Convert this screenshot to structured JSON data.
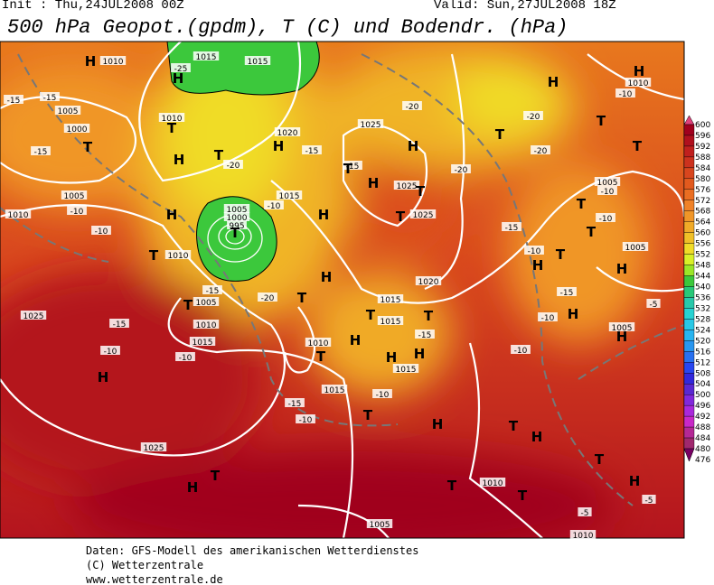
{
  "header": {
    "init": "Init : Thu,24JUL2008 00Z",
    "valid": "Valid: Sun,27JUL2008 18Z",
    "title": "500 hPa Geopot.(gpdm), T (C) und Bodendr. (hPa)"
  },
  "map": {
    "labels": [
      "H",
      "H",
      "1010",
      "1015",
      "1015",
      "-25",
      "-15",
      "-15",
      "1005",
      "1000",
      "T",
      "-15",
      "T",
      "H",
      "1010",
      "T",
      "-20",
      "1020",
      "H",
      "-15",
      "1025",
      "H",
      "-20",
      "-15",
      "T",
      "H",
      "1025",
      "T",
      "1025",
      "T",
      "-20",
      "-20",
      "-20",
      "T",
      "H",
      "H",
      "1010",
      "-10",
      "T",
      "T",
      "1005",
      "-10",
      "T",
      "-10",
      "T",
      "1005",
      "H",
      "-5",
      "1005",
      "H",
      "T",
      "-10",
      "H",
      "-15",
      "-10",
      "H",
      "-10",
      "-15",
      "1005",
      "-10",
      "1010",
      "-10",
      "H",
      "T",
      "1010",
      "1005",
      "1000",
      "995",
      "T",
      "1015",
      "-10",
      "H",
      "H",
      "T",
      "-20",
      "-15",
      "1005",
      "1010",
      "1015",
      "-10",
      "T",
      "-15",
      "-10",
      "1025",
      "H",
      "1010",
      "T",
      "H",
      "T",
      "1015",
      "1015",
      "-15",
      "T",
      "H",
      "H",
      "1020",
      "1015",
      "1015",
      "-10",
      "-15",
      "-10",
      "T",
      "H",
      "T",
      "H",
      "1010",
      "T",
      "T",
      "1025",
      "H",
      "T",
      "1005",
      "-5",
      "1010",
      "H",
      "-5",
      "T"
    ]
  },
  "colorbar": {
    "ticks": [
      600,
      596,
      592,
      588,
      584,
      580,
      576,
      572,
      568,
      564,
      560,
      556,
      552,
      548,
      544,
      540,
      536,
      532,
      528,
      524,
      520,
      516,
      512,
      508,
      504,
      500,
      496,
      492,
      488,
      484,
      480,
      476
    ],
    "colors": [
      "#e0407a",
      "#a0001e",
      "#b0101e",
      "#c0201e",
      "#cc321e",
      "#d8461e",
      "#e25a1e",
      "#ea6e22",
      "#f08228",
      "#f09628",
      "#f0aa28",
      "#f0c028",
      "#f0dc28",
      "#d8f028",
      "#9ae628",
      "#3cc83c",
      "#28c878",
      "#28c8aa",
      "#28d2d2",
      "#28c8e6",
      "#28b4f0",
      "#2896f0",
      "#2870f0",
      "#2846f0",
      "#3228dc",
      "#5a28d2",
      "#8228dc",
      "#aa28dc",
      "#c828c8",
      "#b42896",
      "#a0286e",
      "#780064"
    ]
  },
  "footer": {
    "line1": "Daten: GFS-Modell des amerikanischen Wetterdienstes",
    "line2": "(C) Wetterzentrale",
    "line3": "www.wetterzentrale.de"
  }
}
